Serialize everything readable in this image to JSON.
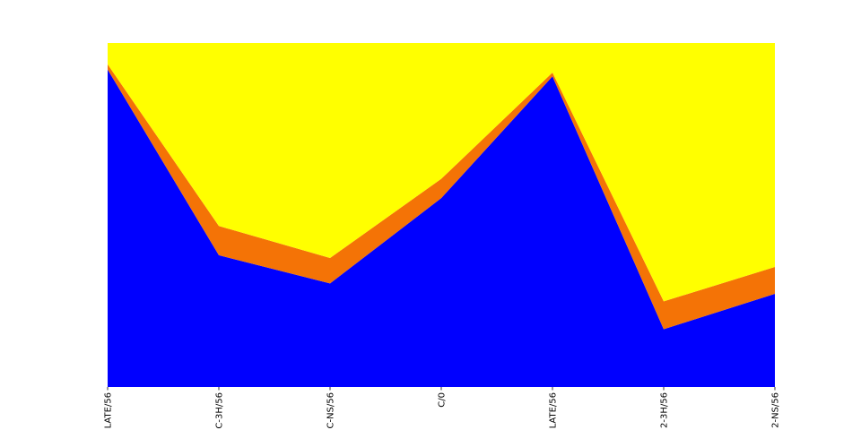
{
  "chart_data": {
    "type": "area",
    "stacked": true,
    "normalized": true,
    "categories": [
      "LATE/56",
      "C-3H/56",
      "C-NS/56",
      "C/0",
      "LATE/56",
      "2-3H/56",
      "2-NS/56"
    ],
    "series": [
      {
        "values": [
          0.923,
          0.383,
          0.301,
          0.549,
          0.903,
          0.168,
          0.271
        ],
        "color": "#0000ff"
      },
      {
        "values": [
          0.015,
          0.085,
          0.074,
          0.056,
          0.011,
          0.081,
          0.078
        ],
        "color": "#f47306"
      },
      {
        "values": [
          0.062,
          0.532,
          0.625,
          0.395,
          0.086,
          0.751,
          0.651
        ],
        "color": "#ffff00"
      }
    ],
    "ylim": [
      0,
      1
    ],
    "title": "",
    "xlabel": "",
    "ylabel": "",
    "grid": false,
    "legend": "none"
  }
}
